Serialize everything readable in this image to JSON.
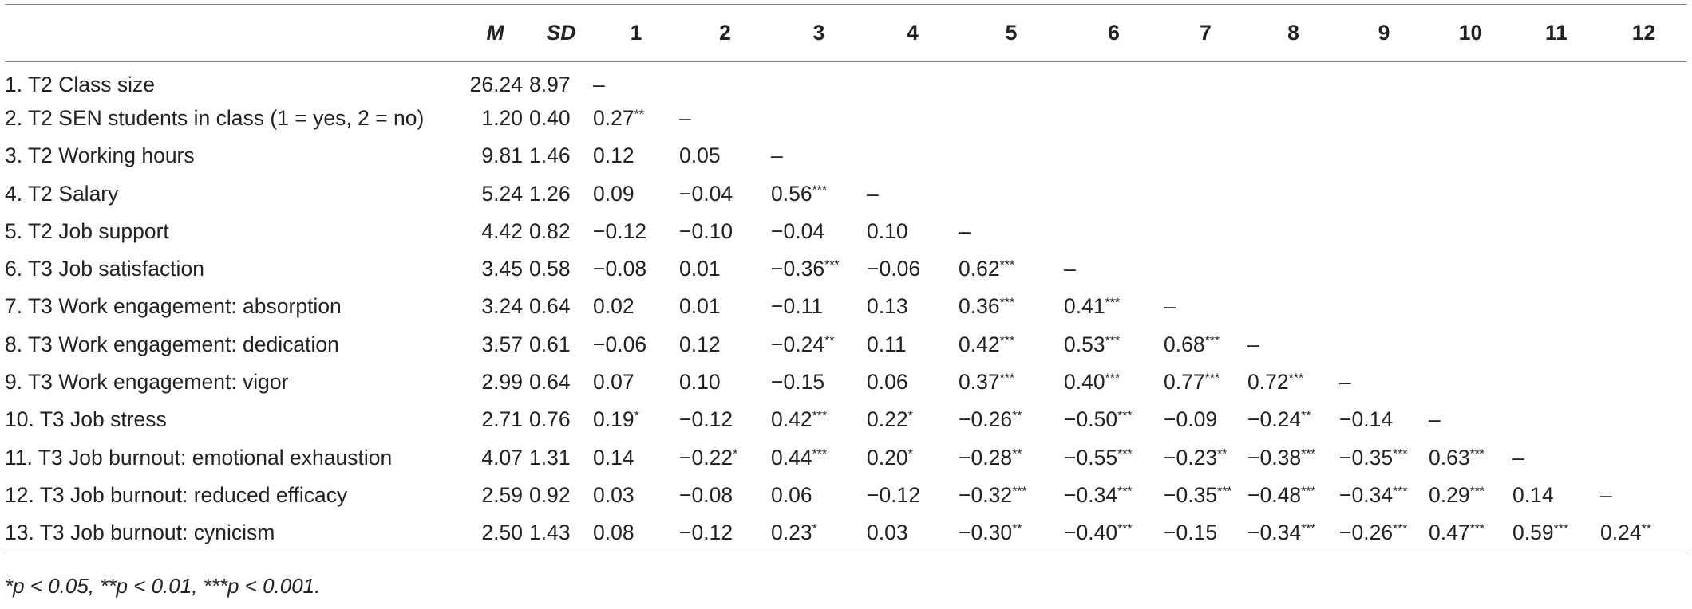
{
  "table": {
    "headers": [
      "",
      "M",
      "SD",
      "1",
      "2",
      "3",
      "4",
      "5",
      "6",
      "7",
      "8",
      "9",
      "10",
      "11",
      "12"
    ],
    "rows": [
      {
        "label": "1. T2 Class size",
        "m": "26.24",
        "sd": "8.97",
        "cells": [
          "–",
          "",
          "",
          "",
          "",
          "",
          "",
          "",
          "",
          "",
          "",
          ""
        ]
      },
      {
        "label": "2. T2 SEN students in class (1 = yes, 2 = no)",
        "m": "1.20",
        "sd": "0.40",
        "cells": [
          "0.27**",
          "–",
          "",
          "",
          "",
          "",
          "",
          "",
          "",
          "",
          "",
          ""
        ]
      },
      {
        "label": "3. T2 Working hours",
        "m": "9.81",
        "sd": "1.46",
        "cells": [
          "0.12",
          "0.05",
          "–",
          "",
          "",
          "",
          "",
          "",
          "",
          "",
          "",
          ""
        ]
      },
      {
        "label": "4. T2 Salary",
        "m": "5.24",
        "sd": "1.26",
        "cells": [
          "0.09",
          "−0.04",
          "0.56***",
          "–",
          "",
          "",
          "",
          "",
          "",
          "",
          "",
          ""
        ]
      },
      {
        "label": "5. T2 Job support",
        "m": "4.42",
        "sd": "0.82",
        "cells": [
          "−0.12",
          "−0.10",
          "−0.04",
          "0.10",
          "–",
          "",
          "",
          "",
          "",
          "",
          "",
          ""
        ]
      },
      {
        "label": "6. T3 Job satisfaction",
        "m": "3.45",
        "sd": "0.58",
        "cells": [
          "−0.08",
          "0.01",
          "−0.36***",
          "−0.06",
          "0.62***",
          "–",
          "",
          "",
          "",
          "",
          "",
          ""
        ]
      },
      {
        "label": "7. T3 Work engagement: absorption",
        "m": "3.24",
        "sd": "0.64",
        "cells": [
          "0.02",
          "0.01",
          "−0.11",
          "0.13",
          "0.36***",
          "0.41***",
          "–",
          "",
          "",
          "",
          "",
          ""
        ]
      },
      {
        "label": "8. T3 Work engagement: dedication",
        "m": "3.57",
        "sd": "0.61",
        "cells": [
          "−0.06",
          "0.12",
          "−0.24**",
          "0.11",
          "0.42***",
          "0.53***",
          "0.68***",
          "–",
          "",
          "",
          "",
          ""
        ]
      },
      {
        "label": "9. T3 Work engagement: vigor",
        "m": "2.99",
        "sd": "0.64",
        "cells": [
          "0.07",
          "0.10",
          "−0.15",
          "0.06",
          "0.37***",
          "0.40***",
          "0.77***",
          "0.72***",
          "–",
          "",
          "",
          ""
        ]
      },
      {
        "label": "10. T3 Job stress",
        "m": "2.71",
        "sd": "0.76",
        "cells": [
          "0.19*",
          "−0.12",
          "0.42***",
          "0.22*",
          "−0.26**",
          "−0.50***",
          "−0.09",
          "−0.24**",
          "−0.14",
          "–",
          "",
          ""
        ]
      },
      {
        "label": "11. T3 Job burnout: emotional exhaustion",
        "m": "4.07",
        "sd": "1.31",
        "cells": [
          "0.14",
          "−0.22*",
          "0.44***",
          "0.20*",
          "−0.28**",
          "−0.55***",
          "−0.23**",
          "−0.38***",
          "−0.35***",
          "0.63***",
          "–",
          ""
        ]
      },
      {
        "label": "12. T3 Job burnout: reduced efficacy",
        "m": "2.59",
        "sd": "0.92",
        "cells": [
          "0.03",
          "−0.08",
          "0.06",
          "−0.12",
          "−0.32***",
          "−0.34***",
          "−0.35***",
          "−0.48***",
          "−0.34***",
          "0.29***",
          "0.14",
          "–"
        ]
      },
      {
        "label": "13. T3 Job burnout: cynicism",
        "m": "2.50",
        "sd": "1.43",
        "cells": [
          "0.08",
          "−0.12",
          "0.23*",
          "0.03",
          "−0.30**",
          "−0.40***",
          "−0.15",
          "−0.34***",
          "−0.26***",
          "0.47***",
          "0.59***",
          "0.24**"
        ]
      }
    ],
    "note": "*p < 0.05, **p < 0.01, ***p < 0.001."
  }
}
